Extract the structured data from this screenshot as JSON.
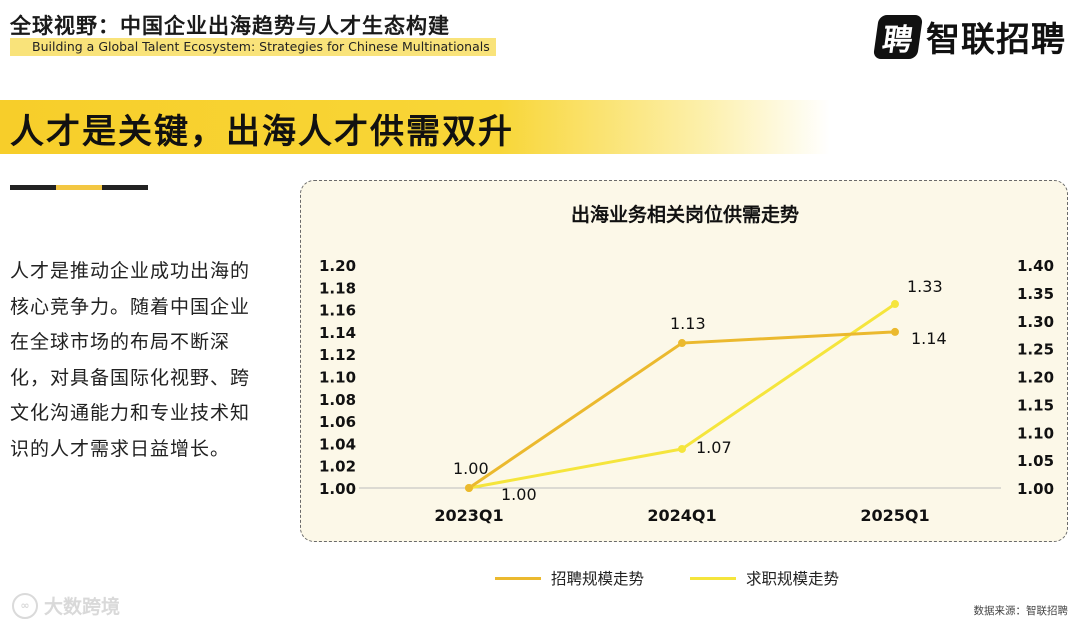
{
  "header": {
    "title": "全球视野：中国企业出海趋势与人才生态构建",
    "subtitle": "Building a Global Talent Ecosystem: Strategies for Chinese Multinationals"
  },
  "logo": {
    "icon_char": "聘",
    "text": "智联招聘",
    "icon": "zhaopin-logo-icon"
  },
  "banner": {
    "text": "人才是关键，出海人才供需双升"
  },
  "body": {
    "paragraph": "人才是推动企业成功出海的核心竞争力。随着中国企业在全球市场的布局不断深化，对具备国际化视野、跨文化沟通能力和专业技术知识的人才需求日益增长。"
  },
  "colors": {
    "accent": "#f7ce2a",
    "recruit_line": "#ebb92e",
    "jobseek_line": "#f5e53c"
  },
  "chart_data": {
    "type": "line",
    "title": "出海业务相关岗位供需走势",
    "categories": [
      "2023Q1",
      "2024Q1",
      "2025Q1"
    ],
    "y_left": {
      "ylim": [
        1.0,
        1.2
      ],
      "ticks": [
        "1.20",
        "1.18",
        "1.16",
        "1.14",
        "1.12",
        "1.10",
        "1.08",
        "1.06",
        "1.04",
        "1.02",
        "1.00"
      ]
    },
    "y_right": {
      "ylim": [
        1.0,
        1.4
      ],
      "ticks": [
        "1.40",
        "1.35",
        "1.30",
        "1.25",
        "1.20",
        "1.15",
        "1.10",
        "1.05",
        "1.00"
      ]
    },
    "series": [
      {
        "name": "招聘规模走势",
        "axis": "left",
        "values": [
          1.0,
          1.13,
          1.14
        ],
        "labels": [
          "1.00",
          "1.13",
          "1.14"
        ],
        "color": "#ebb92e"
      },
      {
        "name": "求职规模走势",
        "axis": "right",
        "values": [
          1.0,
          1.07,
          1.33
        ],
        "labels": [
          "1.00",
          "1.07",
          "1.33"
        ],
        "color": "#f5e53c"
      }
    ]
  },
  "legend": {
    "item1": "招聘规模走势",
    "item2": "求职规模走势"
  },
  "source": "数据来源：智联招聘",
  "watermark": {
    "text": "大数跨境",
    "icon_char": "∞"
  }
}
